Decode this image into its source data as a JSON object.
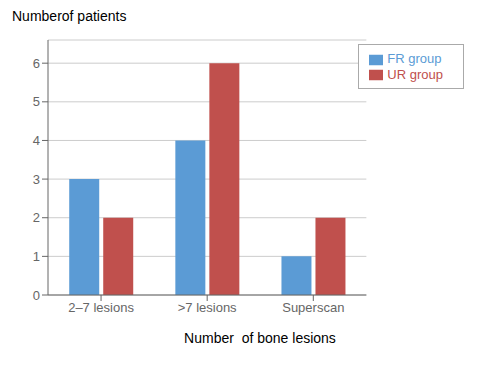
{
  "chart_data": {
    "type": "bar",
    "xlabel": "Number  of bone lesions",
    "ylabel": "Numberof patients",
    "categories": [
      "2–7 lesions",
      ">7 lesions",
      "Superscan"
    ],
    "series": [
      {
        "name": "FR group",
        "color": "#5B9BD5",
        "values": [
          3,
          4,
          1
        ]
      },
      {
        "name": "UR group",
        "color": "#C0504D",
        "values": [
          2,
          6,
          2
        ]
      }
    ],
    "ylim": [
      0,
      6.6
    ],
    "yticks": [
      0,
      1,
      2,
      3,
      4,
      5,
      6
    ],
    "grid": true,
    "legend": "upper right"
  }
}
